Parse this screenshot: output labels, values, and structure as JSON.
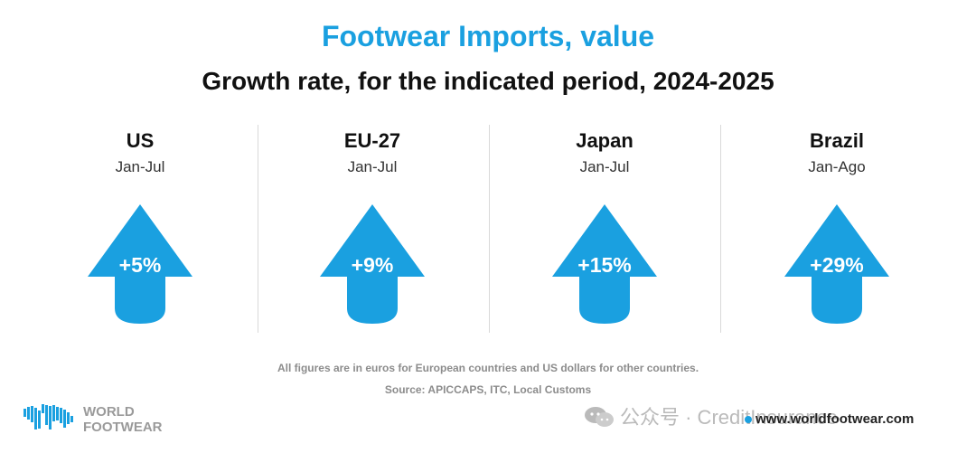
{
  "title": "Footwear Imports, value",
  "subtitle": "Growth rate, for the indicated period, 2024-2025",
  "chart_data": {
    "type": "bar",
    "title": "Footwear Imports, value",
    "subtitle": "Growth rate, for the indicated period, 2024-2025",
    "categories": [
      "US",
      "EU-27",
      "Japan",
      "Brazil"
    ],
    "periods": [
      "Jan-Jul",
      "Jan-Jul",
      "Jan-Jul",
      "Jan-Ago"
    ],
    "values": [
      5,
      9,
      15,
      29
    ],
    "labels": [
      "+5%",
      "+9%",
      "+15%",
      "+29%"
    ],
    "unit": "%",
    "colors": {
      "arrow": "#1aa0e0",
      "title": "#1aa0e0",
      "text": "#111111"
    }
  },
  "notes": {
    "line1": "All figures are in euros for European countries and US dollars for other countries.",
    "line2": "Source: APICCAPS, ITC, Local Customs"
  },
  "logo": {
    "line1": "WORLD",
    "line2": "FOOTWEAR",
    "icon": "world-map-icon"
  },
  "footer": {
    "website": "www.worldfootwear.com",
    "watermark": "公众号 · CreditInsurance",
    "watermark_icon": "wechat-icon"
  }
}
